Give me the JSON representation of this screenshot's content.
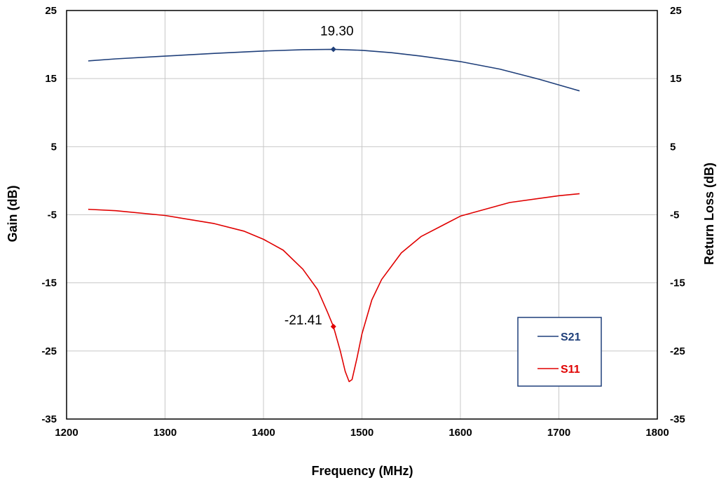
{
  "chart_data": {
    "type": "line",
    "xlabel": "Frequency (MHz)",
    "ylabel": "Gain (dB)",
    "y2label": "Return Loss (dB)",
    "xlim": [
      1200,
      1800
    ],
    "ylim": [
      -35,
      25
    ],
    "y2lim": [
      -35,
      25
    ],
    "xticks": [
      1200,
      1300,
      1400,
      1500,
      1600,
      1700,
      1800
    ],
    "yticks": [
      -35,
      -25,
      -15,
      -5,
      5,
      15,
      25
    ],
    "y2ticks": [
      -35,
      -25,
      -15,
      -5,
      5,
      15,
      25
    ],
    "grid": true,
    "legend_position": "bottom-right",
    "series": [
      {
        "name": "S21",
        "color": "#1F3F7A",
        "x": [
          1222,
          1250,
          1300,
          1350,
          1400,
          1440,
          1471,
          1500,
          1530,
          1560,
          1600,
          1640,
          1680,
          1721
        ],
        "y": [
          17.6,
          17.9,
          18.3,
          18.7,
          19.05,
          19.25,
          19.3,
          19.15,
          18.8,
          18.3,
          17.5,
          16.4,
          14.9,
          13.2
        ]
      },
      {
        "name": "S11",
        "color": "#E00000",
        "x": [
          1222,
          1250,
          1300,
          1350,
          1380,
          1400,
          1420,
          1440,
          1455,
          1465,
          1471,
          1478,
          1483,
          1487,
          1490,
          1495,
          1500,
          1510,
          1520,
          1540,
          1560,
          1600,
          1650,
          1700,
          1721
        ],
        "y": [
          -4.2,
          -4.4,
          -5.1,
          -6.3,
          -7.4,
          -8.6,
          -10.2,
          -13.0,
          -16.0,
          -19.3,
          -21.41,
          -25.0,
          -28.0,
          -29.5,
          -29.2,
          -26.0,
          -22.5,
          -17.5,
          -14.5,
          -10.6,
          -8.2,
          -5.2,
          -3.2,
          -2.2,
          -1.9
        ]
      }
    ],
    "annotations": [
      {
        "series": "S21",
        "x": 1471,
        "y": 19.3,
        "label": "19.30"
      },
      {
        "series": "S11",
        "x": 1471,
        "y": -21.41,
        "label": "-21.41"
      }
    ]
  }
}
